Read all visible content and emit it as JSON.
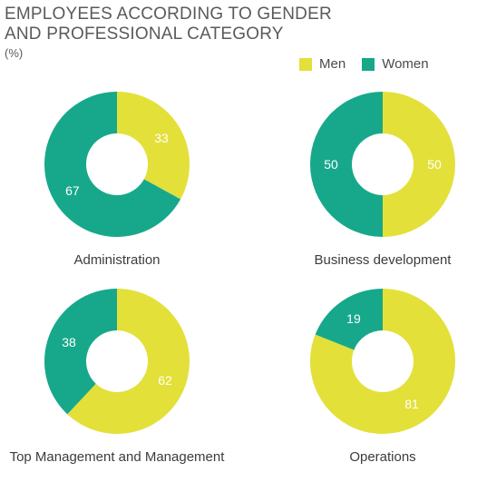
{
  "title": "EMPLOYEES ACCORDING TO GENDER\nAND PROFESSIONAL CATEGORY",
  "subtitle": "(%)",
  "legend": [
    {
      "label": "Men",
      "color": "#e3e03a"
    },
    {
      "label": "Women",
      "color": "#17a88b"
    }
  ],
  "chart_data": [
    {
      "type": "pie",
      "title": "Administration",
      "categories": [
        "Men",
        "Women"
      ],
      "values": [
        33,
        67
      ],
      "hole": "donut"
    },
    {
      "type": "pie",
      "title": "Business development",
      "categories": [
        "Men",
        "Women"
      ],
      "values": [
        50,
        50
      ],
      "hole": "donut"
    },
    {
      "type": "pie",
      "title": "Top Management and Management",
      "categories": [
        "Men",
        "Women"
      ],
      "values": [
        62,
        38
      ],
      "hole": "donut"
    },
    {
      "type": "pie",
      "title": "Operations",
      "categories": [
        "Men",
        "Women"
      ],
      "values": [
        81,
        19
      ],
      "hole": "donut"
    }
  ]
}
